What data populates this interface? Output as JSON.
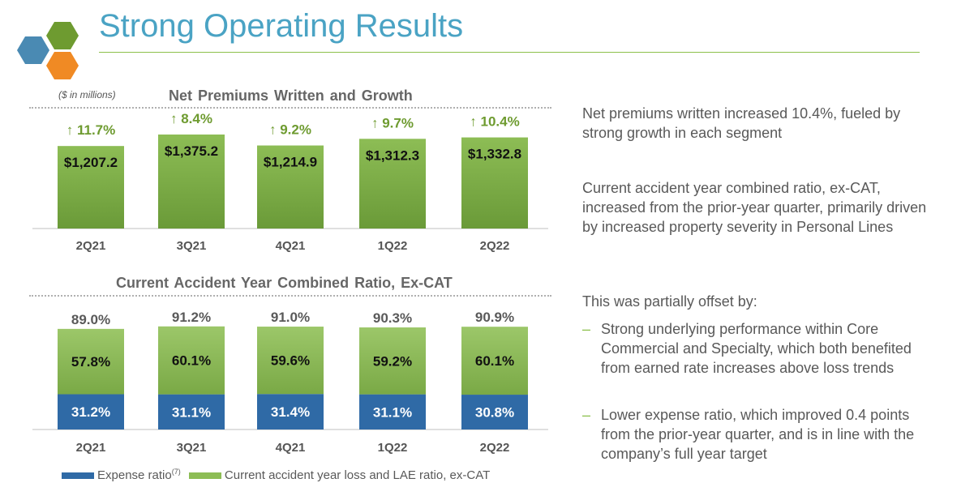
{
  "title": "Strong Operating Results",
  "colors": {
    "title": "#4aa3c4",
    "accent_green": "#8cc04b",
    "bar_green": "#7fae45",
    "expense_blue": "#2f6aa6",
    "growth_green": "#6e9b30"
  },
  "units_note": "($ in millions)",
  "chart_data": [
    {
      "type": "bar",
      "title": "Net Premiums Written and Growth",
      "categories": [
        "2Q21",
        "3Q21",
        "4Q21",
        "1Q22",
        "2Q22"
      ],
      "values": [
        1207.2,
        1375.2,
        1214.9,
        1312.3,
        1332.8
      ],
      "value_labels": [
        "$1,207.2",
        "$1,375.2",
        "$1,214.9",
        "$1,312.3",
        "$1,332.8"
      ],
      "growth_labels": [
        "↑ 11.7%",
        "↑ 8.4%",
        "↑ 9.2%",
        "↑ 9.7%",
        "↑ 10.4%"
      ],
      "growth_values": [
        11.7,
        8.4,
        9.2,
        9.7,
        10.4
      ],
      "ylim": [
        0,
        1500
      ]
    },
    {
      "type": "bar",
      "stacked": true,
      "title": "Current Accident Year Combined Ratio, Ex-CAT",
      "categories": [
        "2Q21",
        "3Q21",
        "4Q21",
        "1Q22",
        "2Q22"
      ],
      "series": [
        {
          "name": "Expense ratio",
          "values": [
            31.2,
            31.1,
            31.4,
            31.1,
            30.8
          ],
          "labels": [
            "31.2%",
            "31.1%",
            "31.4%",
            "31.1%",
            "30.8%"
          ]
        },
        {
          "name": "Current accident year loss and LAE ratio, ex-CAT",
          "values": [
            57.8,
            60.1,
            59.6,
            59.2,
            60.1
          ],
          "labels": [
            "57.8%",
            "60.1%",
            "59.6%",
            "59.2%",
            "60.1%"
          ]
        }
      ],
      "totals": [
        89.0,
        91.2,
        91.0,
        90.3,
        90.9
      ],
      "total_labels": [
        "89.0%",
        "91.2%",
        "91.0%",
        "90.3%",
        "90.9%"
      ],
      "ylim": [
        0,
        100
      ]
    }
  ],
  "legend": {
    "expense_label": "Expense ratio",
    "expense_footnote": "(7)",
    "loss_label": "Current accident year loss and LAE ratio, ex-CAT"
  },
  "commentary": {
    "p1": "Net premiums written increased 10.4%, fueled by strong growth in each segment",
    "p2": "Current accident year combined ratio, ex-CAT, increased from the prior-year quarter, primarily driven by increased property severity in Personal Lines",
    "p3": "This was partially offset by:",
    "bullet_marker": "–",
    "bullets": [
      "Strong underlying performance within Core Commercial and Specialty, which both benefited from earned rate increases above loss trends",
      "Lower expense ratio, which improved 0.4 points from the prior-year quarter, and is in line with the company’s full year target"
    ]
  }
}
